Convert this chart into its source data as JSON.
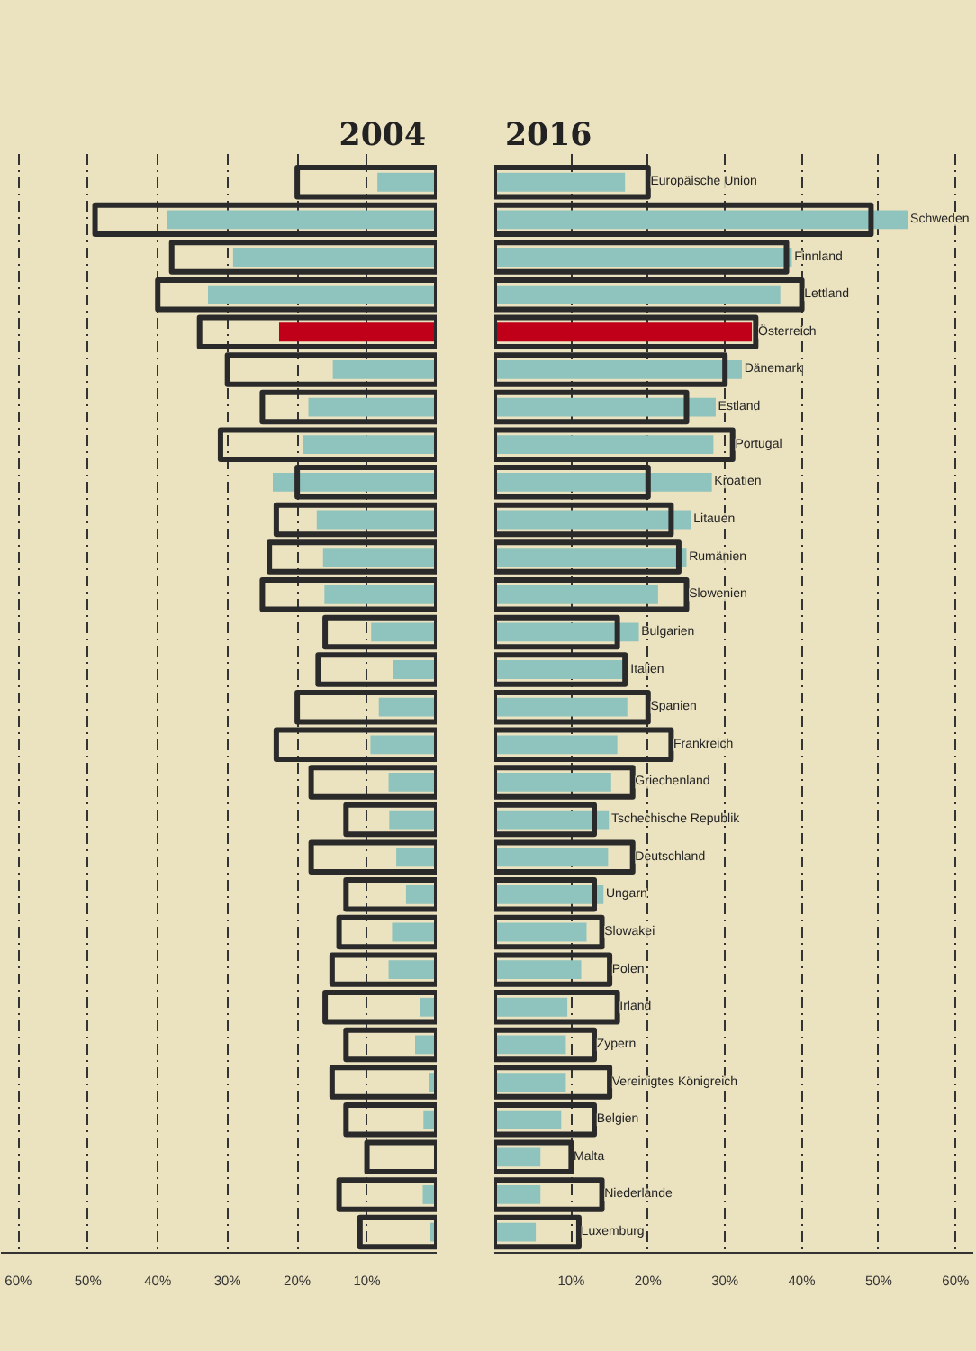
{
  "chart_data": [
    {
      "type": "bar",
      "orientation": "horizontal",
      "title": "2004",
      "categories": [
        null,
        null,
        null,
        null,
        null,
        null,
        null,
        null,
        null,
        null,
        null,
        null,
        null,
        null,
        null,
        null,
        null,
        null,
        null,
        null,
        null,
        null,
        null,
        null,
        null,
        null,
        null,
        null,
        null
      ],
      "series": [
        {
          "colors": [
            "#8fc3bd",
            "#8fc3bd",
            "#8fc3bd",
            "#8fc3bd",
            "#c00018",
            "#8fc3bd",
            "#8fc3bd",
            "#8fc3bd",
            "#8fc3bd",
            "#8fc3bd",
            "#8fc3bd",
            "#8fc3bd",
            "#8fc3bd",
            "#8fc3bd",
            "#8fc3bd",
            "#8fc3bd",
            "#8fc3bd",
            "#8fc3bd",
            "#8fc3bd",
            "#8fc3bd",
            "#8fc3bd",
            "#8fc3bd",
            "#8fc3bd",
            "#8fc3bd",
            "#8fc3bd",
            "#8fc3bd",
            "#8fc3bd",
            "#8fc3bd",
            "#8fc3bd"
          ],
          "values": [
            8.5,
            38.7,
            29.2,
            32.8,
            22.6,
            14.9,
            18.4,
            19.2,
            23.5,
            17.2,
            16.3,
            16.1,
            9.4,
            6.3,
            8.3,
            9.5,
            6.9,
            6.8,
            5.8,
            4.4,
            6.4,
            6.9,
            2.4,
            3.1,
            1.1,
            1.9,
            null,
            2.0,
            0.9
          ]
        },
        {
          "color": "#2a2a2a",
          "values": [
            20,
            49,
            38,
            40,
            34,
            30,
            25,
            31,
            20,
            23,
            24,
            25,
            16,
            17,
            20,
            23,
            18,
            13,
            18,
            13,
            14,
            15,
            16,
            13,
            15,
            13,
            10,
            14,
            11
          ]
        }
      ],
      "xlim": [
        62.5,
        0
      ],
      "xticks": [
        {
          "value": 60,
          "label": "60%"
        },
        {
          "value": 50,
          "label": "50%"
        },
        {
          "value": 40,
          "label": "40%"
        },
        {
          "value": 30,
          "label": "30%"
        },
        {
          "value": 20,
          "label": "20%"
        },
        {
          "value": 10,
          "label": "10%"
        }
      ],
      "grid": "x",
      "tick_labels": "x"
    },
    {
      "type": "bar",
      "orientation": "horizontal",
      "title": "2016",
      "categories": [
        "Europäische Union",
        "Schweden",
        "Finnland",
        "Lettland",
        "Österreich",
        "Dänemark",
        "Estland",
        "Portugal",
        "Kroatien",
        "Litauen",
        "Rumänien",
        "Slowenien",
        "Bulgarien",
        "Italien",
        "Spanien",
        "Frankreich",
        "Griechenland",
        "Tschechische Republik",
        "Deutschland",
        "Ungarn",
        "Slowakei",
        "Polen",
        "Irland",
        "Zypern",
        "Vereinigtes Königreich",
        "Belgien",
        "Malta",
        "Niederlande",
        "Luxemburg"
      ],
      "series": [
        {
          "colors": [
            "#8fc3bd",
            "#8fc3bd",
            "#8fc3bd",
            "#8fc3bd",
            "#c00018",
            "#8fc3bd",
            "#8fc3bd",
            "#8fc3bd",
            "#8fc3bd",
            "#8fc3bd",
            "#8fc3bd",
            "#8fc3bd",
            "#8fc3bd",
            "#8fc3bd",
            "#8fc3bd",
            "#8fc3bd",
            "#8fc3bd",
            "#8fc3bd",
            "#8fc3bd",
            "#8fc3bd",
            "#8fc3bd",
            "#8fc3bd",
            "#8fc3bd",
            "#8fc3bd",
            "#8fc3bd",
            "#8fc3bd",
            "#8fc3bd",
            "#8fc3bd",
            "#8fc3bd"
          ],
          "values": [
            17.0,
            53.8,
            38.7,
            37.2,
            33.5,
            32.2,
            28.8,
            28.5,
            28.3,
            25.6,
            25.0,
            21.3,
            18.8,
            17.4,
            17.3,
            16.0,
            15.2,
            14.9,
            14.8,
            14.2,
            12.0,
            11.3,
            9.5,
            9.3,
            9.3,
            8.7,
            6.0,
            6.0,
            5.4
          ]
        },
        {
          "color": "#2a2a2a",
          "values": [
            20,
            49,
            38,
            40,
            34,
            30,
            25,
            31,
            20,
            23,
            24,
            25,
            16,
            17,
            20,
            23,
            18,
            13,
            18,
            13,
            14,
            15,
            16,
            13,
            15,
            13,
            10,
            14,
            11
          ]
        }
      ],
      "xlim": [
        0,
        62.3
      ],
      "xticks": [
        {
          "value": 10,
          "label": "10%"
        },
        {
          "value": 20,
          "label": "20%"
        },
        {
          "value": 30,
          "label": "30%"
        },
        {
          "value": 40,
          "label": "40%"
        },
        {
          "value": 50,
          "label": "50%"
        },
        {
          "value": 60,
          "label": "60%"
        }
      ],
      "grid": "x"
    }
  ]
}
